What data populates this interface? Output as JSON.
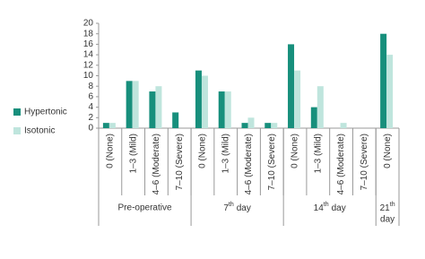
{
  "chart_data": {
    "type": "bar",
    "categories": [
      "0 (None)",
      "1–3 (Mild)",
      "4–6 (Moderate)",
      "7–10 (Severe)",
      "0 (None)",
      "1–3 (Mild)",
      "4–6 (Moderate)",
      "7–10 (Severe)",
      "0 (None)",
      "1–3 (Mild)",
      "4–6 (Moderate)",
      "7–10 (Severe)",
      "0 (None)"
    ],
    "groups": [
      {
        "label": "Pre-operative",
        "size": 4
      },
      {
        "number": "7",
        "suffix": "th",
        "word": "day",
        "size": 4
      },
      {
        "number": "14",
        "suffix": "th",
        "word": "day",
        "size": 4
      },
      {
        "number": "21",
        "suffix": "th",
        "word": "day",
        "size": 1
      }
    ],
    "series": [
      {
        "name": "Hypertonic",
        "color": "#178f7c",
        "values": [
          1,
          9,
          7,
          3,
          11,
          7,
          1,
          1,
          16,
          4,
          0,
          0,
          18
        ]
      },
      {
        "name": "Isotonic",
        "color": "#bfe5dd",
        "values": [
          1,
          9,
          8,
          0,
          10,
          7,
          2,
          1,
          11,
          8,
          1,
          0,
          14
        ]
      }
    ],
    "ylim": [
      0,
      20
    ],
    "yticks": [
      0,
      2,
      4,
      6,
      8,
      10,
      12,
      14,
      16,
      18,
      20
    ],
    "legend": "left"
  }
}
